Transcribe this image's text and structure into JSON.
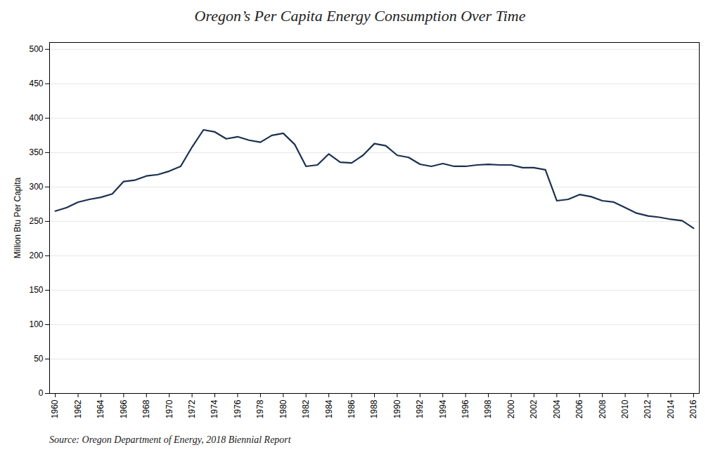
{
  "chart_data": {
    "type": "line",
    "title": "Oregon’s Per Capita Energy Consumption Over Time",
    "ylabel": "Million Btu Per Capita",
    "source": "Source: Oregon Department of Energy, 2018 Biennial Report",
    "color": "#1a3050",
    "x": [
      1960,
      1961,
      1962,
      1963,
      1964,
      1965,
      1966,
      1967,
      1968,
      1969,
      1970,
      1971,
      1972,
      1973,
      1974,
      1975,
      1976,
      1977,
      1978,
      1979,
      1980,
      1981,
      1982,
      1983,
      1984,
      1985,
      1986,
      1987,
      1988,
      1989,
      1990,
      1991,
      1992,
      1993,
      1994,
      1995,
      1996,
      1997,
      1998,
      1999,
      2000,
      2001,
      2002,
      2003,
      2004,
      2005,
      2006,
      2007,
      2008,
      2009,
      2010,
      2011,
      2012,
      2013,
      2014,
      2015,
      2016
    ],
    "values": [
      265,
      270,
      278,
      282,
      285,
      290,
      308,
      310,
      316,
      318,
      323,
      330,
      358,
      383,
      380,
      370,
      373,
      368,
      365,
      375,
      378,
      362,
      330,
      332,
      348,
      336,
      335,
      346,
      363,
      360,
      346,
      343,
      333,
      330,
      334,
      330,
      330,
      332,
      333,
      332,
      332,
      328,
      328,
      325,
      280,
      282,
      289,
      286,
      280,
      278,
      270,
      262,
      258,
      256,
      253,
      251,
      240
    ],
    "xlim": [
      1959.5,
      2016.5
    ],
    "xticks": [
      1960,
      1962,
      1964,
      1966,
      1968,
      1970,
      1972,
      1974,
      1976,
      1978,
      1980,
      1982,
      1984,
      1986,
      1988,
      1990,
      1992,
      1994,
      1996,
      1998,
      2000,
      2002,
      2004,
      2006,
      2008,
      2010,
      2012,
      2014,
      2016
    ],
    "ylim": [
      0,
      510
    ],
    "yticks": [
      0,
      50,
      100,
      150,
      200,
      250,
      300,
      350,
      400,
      450,
      500
    ],
    "grid": true
  }
}
